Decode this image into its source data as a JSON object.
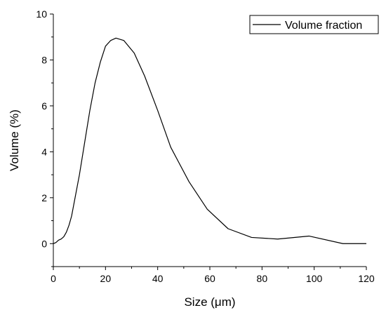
{
  "chart_data": {
    "type": "line",
    "xlabel": "Size (μm)",
    "ylabel": "Volume (%)",
    "xlim": [
      0,
      120
    ],
    "ylim": [
      -1,
      10
    ],
    "x_ticks": [
      0,
      20,
      40,
      60,
      80,
      100,
      120
    ],
    "y_ticks": [
      0,
      2,
      4,
      6,
      8,
      10
    ],
    "grid": false,
    "legend_position": "top-right",
    "series": [
      {
        "name": "Volume fraction",
        "color": "#000000",
        "x": [
          0,
          1,
          2,
          3,
          4,
          5,
          6,
          7,
          8,
          10,
          12,
          14,
          16,
          18,
          20,
          22,
          24,
          27,
          31,
          35,
          40,
          45,
          52,
          59,
          67,
          76,
          86,
          98,
          111,
          120
        ],
        "y": [
          0.0,
          0.05,
          0.15,
          0.2,
          0.3,
          0.5,
          0.8,
          1.2,
          1.8,
          3.0,
          4.4,
          5.8,
          7.0,
          7.9,
          8.6,
          8.85,
          8.95,
          8.85,
          8.3,
          7.3,
          5.8,
          4.2,
          2.7,
          1.5,
          0.65,
          0.27,
          0.2,
          0.33,
          0.0,
          0.0
        ]
      }
    ]
  }
}
